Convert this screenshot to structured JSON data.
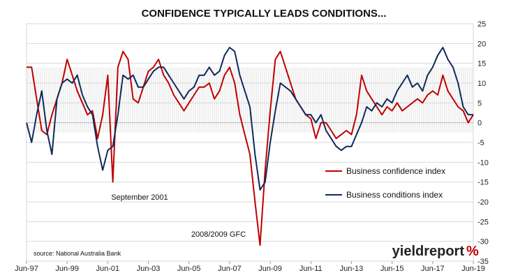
{
  "chart_data": {
    "type": "line",
    "title": "CONFIDENCE TYPICALLY LEADS CONDITIONS...",
    "xlabel": "",
    "ylabel": "",
    "y_axis_side": "right",
    "ylim": [
      -35,
      25
    ],
    "yticks": [
      25,
      20,
      15,
      10,
      5,
      0,
      -5,
      -10,
      -15,
      -20,
      -25,
      -30,
      -35
    ],
    "x_range": [
      "1997-06",
      "2019-06"
    ],
    "x_ticks": [
      "Jun-97",
      "Jun-99",
      "Jun-01",
      "Jun-03",
      "Jun-05",
      "Jun-07",
      "Jun-09",
      "Jun-11",
      "Jun-13",
      "Jun-15",
      "Jun-17",
      "Jun-19"
    ],
    "grid": true,
    "legend_position": "center-right",
    "annotations": [
      {
        "text": "September 2001",
        "date": "2001-09"
      },
      {
        "text": "2008/2009 GFC",
        "date": "2008-12"
      }
    ],
    "source_note": "source: National Australia Bank",
    "logo": {
      "main": "yieldreport",
      "accent": "%"
    },
    "series": [
      {
        "name": "Business confidence index",
        "color": "#c00000",
        "points": [
          [
            "1997-06",
            14
          ],
          [
            "1997-09",
            14
          ],
          [
            "1997-12",
            6
          ],
          [
            "1998-03",
            -2
          ],
          [
            "1998-06",
            -3
          ],
          [
            "1998-09",
            2
          ],
          [
            "1998-12",
            6
          ],
          [
            "1999-03",
            10
          ],
          [
            "1999-06",
            16
          ],
          [
            "1999-09",
            12
          ],
          [
            "1999-12",
            8
          ],
          [
            "2000-03",
            5
          ],
          [
            "2000-06",
            2
          ],
          [
            "2000-09",
            3
          ],
          [
            "2000-12",
            -4
          ],
          [
            "2001-03",
            2
          ],
          [
            "2001-06",
            12
          ],
          [
            "2001-09",
            -15
          ],
          [
            "2001-12",
            14
          ],
          [
            "2002-03",
            18
          ],
          [
            "2002-06",
            16
          ],
          [
            "2002-09",
            6
          ],
          [
            "2002-12",
            5
          ],
          [
            "2003-03",
            9
          ],
          [
            "2003-06",
            13
          ],
          [
            "2003-09",
            14
          ],
          [
            "2003-12",
            16
          ],
          [
            "2004-03",
            12
          ],
          [
            "2004-06",
            10
          ],
          [
            "2004-09",
            7
          ],
          [
            "2004-12",
            5
          ],
          [
            "2005-03",
            3
          ],
          [
            "2005-06",
            5
          ],
          [
            "2005-09",
            7
          ],
          [
            "2005-12",
            9
          ],
          [
            "2006-03",
            9
          ],
          [
            "2006-06",
            10
          ],
          [
            "2006-09",
            6
          ],
          [
            "2006-12",
            8
          ],
          [
            "2007-03",
            12
          ],
          [
            "2007-06",
            14
          ],
          [
            "2007-09",
            10
          ],
          [
            "2007-12",
            2
          ],
          [
            "2008-03",
            -3
          ],
          [
            "2008-06",
            -8
          ],
          [
            "2008-09",
            -20
          ],
          [
            "2008-12",
            -31
          ],
          [
            "2009-03",
            -12
          ],
          [
            "2009-06",
            3
          ],
          [
            "2009-09",
            16
          ],
          [
            "2009-12",
            18
          ],
          [
            "2010-03",
            14
          ],
          [
            "2010-06",
            10
          ],
          [
            "2010-09",
            6
          ],
          [
            "2010-12",
            4
          ],
          [
            "2011-03",
            2
          ],
          [
            "2011-06",
            1
          ],
          [
            "2011-09",
            -4
          ],
          [
            "2011-12",
            0
          ],
          [
            "2012-03",
            0
          ],
          [
            "2012-06",
            -2
          ],
          [
            "2012-09",
            -4
          ],
          [
            "2012-12",
            -3
          ],
          [
            "2013-03",
            -2
          ],
          [
            "2013-06",
            -3
          ],
          [
            "2013-09",
            2
          ],
          [
            "2013-12",
            12
          ],
          [
            "2014-03",
            8
          ],
          [
            "2014-06",
            6
          ],
          [
            "2014-09",
            4
          ],
          [
            "2014-12",
            2
          ],
          [
            "2015-03",
            4
          ],
          [
            "2015-06",
            3
          ],
          [
            "2015-09",
            5
          ],
          [
            "2015-12",
            3
          ],
          [
            "2016-03",
            4
          ],
          [
            "2016-06",
            5
          ],
          [
            "2016-09",
            6
          ],
          [
            "2016-12",
            5
          ],
          [
            "2017-03",
            7
          ],
          [
            "2017-06",
            8
          ],
          [
            "2017-09",
            7
          ],
          [
            "2017-12",
            12
          ],
          [
            "2018-03",
            8
          ],
          [
            "2018-06",
            6
          ],
          [
            "2018-09",
            4
          ],
          [
            "2018-12",
            3
          ],
          [
            "2019-03",
            0
          ],
          [
            "2019-06",
            2
          ]
        ]
      },
      {
        "name": "Business conditions index",
        "color": "#0f2a5c",
        "points": [
          [
            "1997-06",
            0
          ],
          [
            "1997-09",
            -5
          ],
          [
            "1997-12",
            2
          ],
          [
            "1998-03",
            8
          ],
          [
            "1998-06",
            -2
          ],
          [
            "1998-09",
            -8
          ],
          [
            "1998-12",
            6
          ],
          [
            "1999-03",
            10
          ],
          [
            "1999-06",
            11
          ],
          [
            "1999-09",
            10
          ],
          [
            "1999-12",
            12
          ],
          [
            "2000-03",
            7
          ],
          [
            "2000-06",
            4
          ],
          [
            "2000-09",
            2
          ],
          [
            "2000-12",
            -6
          ],
          [
            "2001-03",
            -12
          ],
          [
            "2001-06",
            -7
          ],
          [
            "2001-09",
            -6
          ],
          [
            "2001-12",
            2
          ],
          [
            "2002-03",
            12
          ],
          [
            "2002-06",
            11
          ],
          [
            "2002-09",
            12
          ],
          [
            "2002-12",
            9
          ],
          [
            "2003-03",
            9
          ],
          [
            "2003-06",
            11
          ],
          [
            "2003-09",
            13
          ],
          [
            "2003-12",
            14
          ],
          [
            "2004-03",
            14
          ],
          [
            "2004-06",
            12
          ],
          [
            "2004-09",
            10
          ],
          [
            "2004-12",
            8
          ],
          [
            "2005-03",
            6
          ],
          [
            "2005-06",
            8
          ],
          [
            "2005-09",
            9
          ],
          [
            "2005-12",
            12
          ],
          [
            "2006-03",
            12
          ],
          [
            "2006-06",
            14
          ],
          [
            "2006-09",
            12
          ],
          [
            "2006-12",
            13
          ],
          [
            "2007-03",
            17
          ],
          [
            "2007-06",
            19
          ],
          [
            "2007-09",
            18
          ],
          [
            "2007-12",
            12
          ],
          [
            "2008-03",
            8
          ],
          [
            "2008-06",
            4
          ],
          [
            "2008-09",
            -8
          ],
          [
            "2008-12",
            -17
          ],
          [
            "2009-03",
            -15
          ],
          [
            "2009-06",
            -5
          ],
          [
            "2009-09",
            3
          ],
          [
            "2009-12",
            10
          ],
          [
            "2010-03",
            9
          ],
          [
            "2010-06",
            8
          ],
          [
            "2010-09",
            6
          ],
          [
            "2010-12",
            4
          ],
          [
            "2011-03",
            2
          ],
          [
            "2011-06",
            2
          ],
          [
            "2011-09",
            0
          ],
          [
            "2011-12",
            2
          ],
          [
            "2012-03",
            -2
          ],
          [
            "2012-06",
            -4
          ],
          [
            "2012-09",
            -6
          ],
          [
            "2012-12",
            -7
          ],
          [
            "2013-03",
            -6
          ],
          [
            "2013-06",
            -6
          ],
          [
            "2013-09",
            -3
          ],
          [
            "2013-12",
            0
          ],
          [
            "2014-03",
            4
          ],
          [
            "2014-06",
            3
          ],
          [
            "2014-09",
            5
          ],
          [
            "2014-12",
            4
          ],
          [
            "2015-03",
            6
          ],
          [
            "2015-06",
            5
          ],
          [
            "2015-09",
            8
          ],
          [
            "2015-12",
            10
          ],
          [
            "2016-03",
            12
          ],
          [
            "2016-06",
            9
          ],
          [
            "2016-09",
            10
          ],
          [
            "2016-12",
            8
          ],
          [
            "2017-03",
            12
          ],
          [
            "2017-06",
            14
          ],
          [
            "2017-09",
            17
          ],
          [
            "2017-12",
            19
          ],
          [
            "2018-03",
            16
          ],
          [
            "2018-06",
            14
          ],
          [
            "2018-09",
            10
          ],
          [
            "2018-12",
            4
          ],
          [
            "2019-03",
            2
          ],
          [
            "2019-06",
            2
          ]
        ]
      }
    ]
  }
}
